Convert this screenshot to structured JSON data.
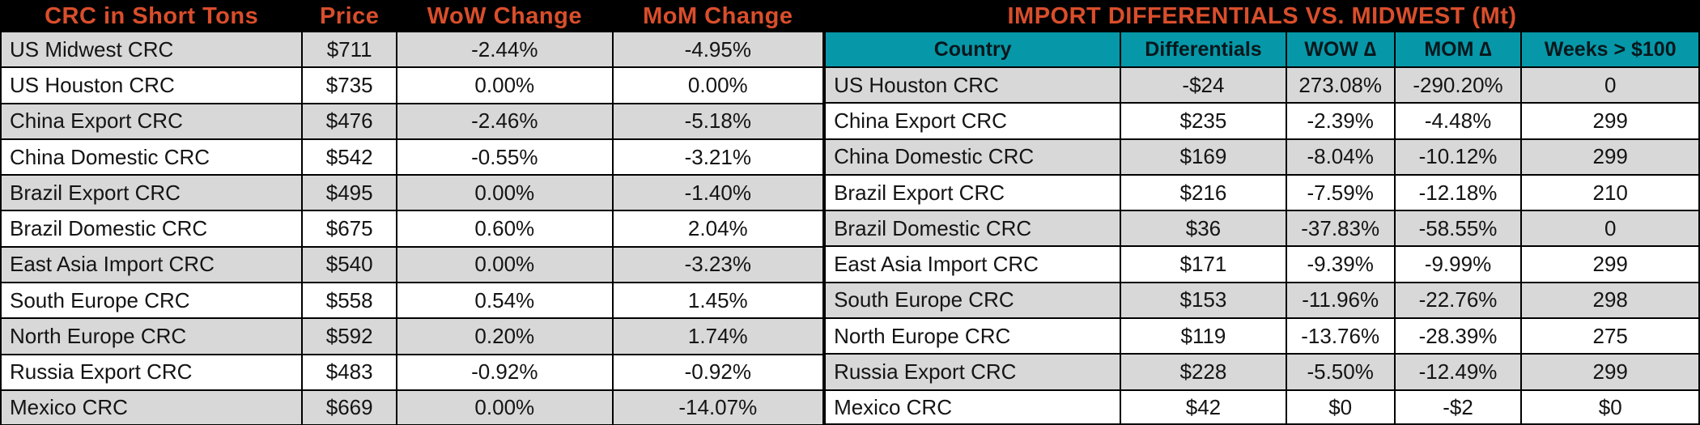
{
  "colors": {
    "accent_orange": "#D94E2B",
    "teal_header": "#0698A8",
    "row_gray": "#D8D8D8",
    "row_white": "#FFFFFF",
    "title_bar_black": "#000000"
  },
  "left_table": {
    "headers": [
      "CRC in Short Tons",
      "Price",
      "WoW Change",
      "MoM Change"
    ],
    "rows": [
      {
        "name": "US Midwest CRC",
        "price": "$711",
        "wow": "-2.44%",
        "mom": "-4.95%"
      },
      {
        "name": "US Houston CRC",
        "price": "$735",
        "wow": "0.00%",
        "mom": "0.00%"
      },
      {
        "name": "China Export CRC",
        "price": "$476",
        "wow": "-2.46%",
        "mom": "-5.18%"
      },
      {
        "name": "China Domestic CRC",
        "price": "$542",
        "wow": "-0.55%",
        "mom": "-3.21%"
      },
      {
        "name": "Brazil Export CRC",
        "price": "$495",
        "wow": "0.00%",
        "mom": "-1.40%"
      },
      {
        "name": "Brazil Domestic CRC",
        "price": "$675",
        "wow": "0.60%",
        "mom": "2.04%"
      },
      {
        "name": "East Asia Import CRC",
        "price": "$540",
        "wow": "0.00%",
        "mom": "-3.23%"
      },
      {
        "name": "South Europe CRC",
        "price": "$558",
        "wow": "0.54%",
        "mom": "1.45%"
      },
      {
        "name": "North Europe CRC",
        "price": "$592",
        "wow": "0.20%",
        "mom": "1.74%"
      },
      {
        "name": "Russia Export CRC",
        "price": "$483",
        "wow": "-0.92%",
        "mom": "-0.92%"
      },
      {
        "name": "Mexico CRC",
        "price": "$669",
        "wow": "0.00%",
        "mom": "-14.07%"
      }
    ]
  },
  "right_table": {
    "title": "IMPORT DIFFERENTIALS VS. MIDWEST (Mt)",
    "headers": [
      "Country",
      "Differentials",
      "WOW ∆",
      "MOM ∆",
      "Weeks > $100"
    ],
    "rows": [
      {
        "country": "US Houston CRC",
        "diff": "-$24",
        "wow": "273.08%",
        "mom": "-290.20%",
        "weeks": "0"
      },
      {
        "country": "China Export CRC",
        "diff": "$235",
        "wow": "-2.39%",
        "mom": "-4.48%",
        "weeks": "299"
      },
      {
        "country": "China Domestic CRC",
        "diff": "$169",
        "wow": "-8.04%",
        "mom": "-10.12%",
        "weeks": "299"
      },
      {
        "country": "Brazil Export CRC",
        "diff": "$216",
        "wow": "-7.59%",
        "mom": "-12.18%",
        "weeks": "210"
      },
      {
        "country": "Brazil Domestic CRC",
        "diff": "$36",
        "wow": "-37.83%",
        "mom": "-58.55%",
        "weeks": "0"
      },
      {
        "country": "East Asia Import CRC",
        "diff": "$171",
        "wow": "-9.39%",
        "mom": "-9.99%",
        "weeks": "299"
      },
      {
        "country": "South Europe CRC",
        "diff": "$153",
        "wow": "-11.96%",
        "mom": "-22.76%",
        "weeks": "298"
      },
      {
        "country": "North Europe CRC",
        "diff": "$119",
        "wow": "-13.76%",
        "mom": "-28.39%",
        "weeks": "275"
      },
      {
        "country": "Russia Export CRC",
        "diff": "$228",
        "wow": "-5.50%",
        "mom": "-12.49%",
        "weeks": "299"
      },
      {
        "country": "Mexico CRC",
        "diff": "$42",
        "wow": "$0",
        "mom": "-$2",
        "weeks": "$0"
      }
    ]
  }
}
